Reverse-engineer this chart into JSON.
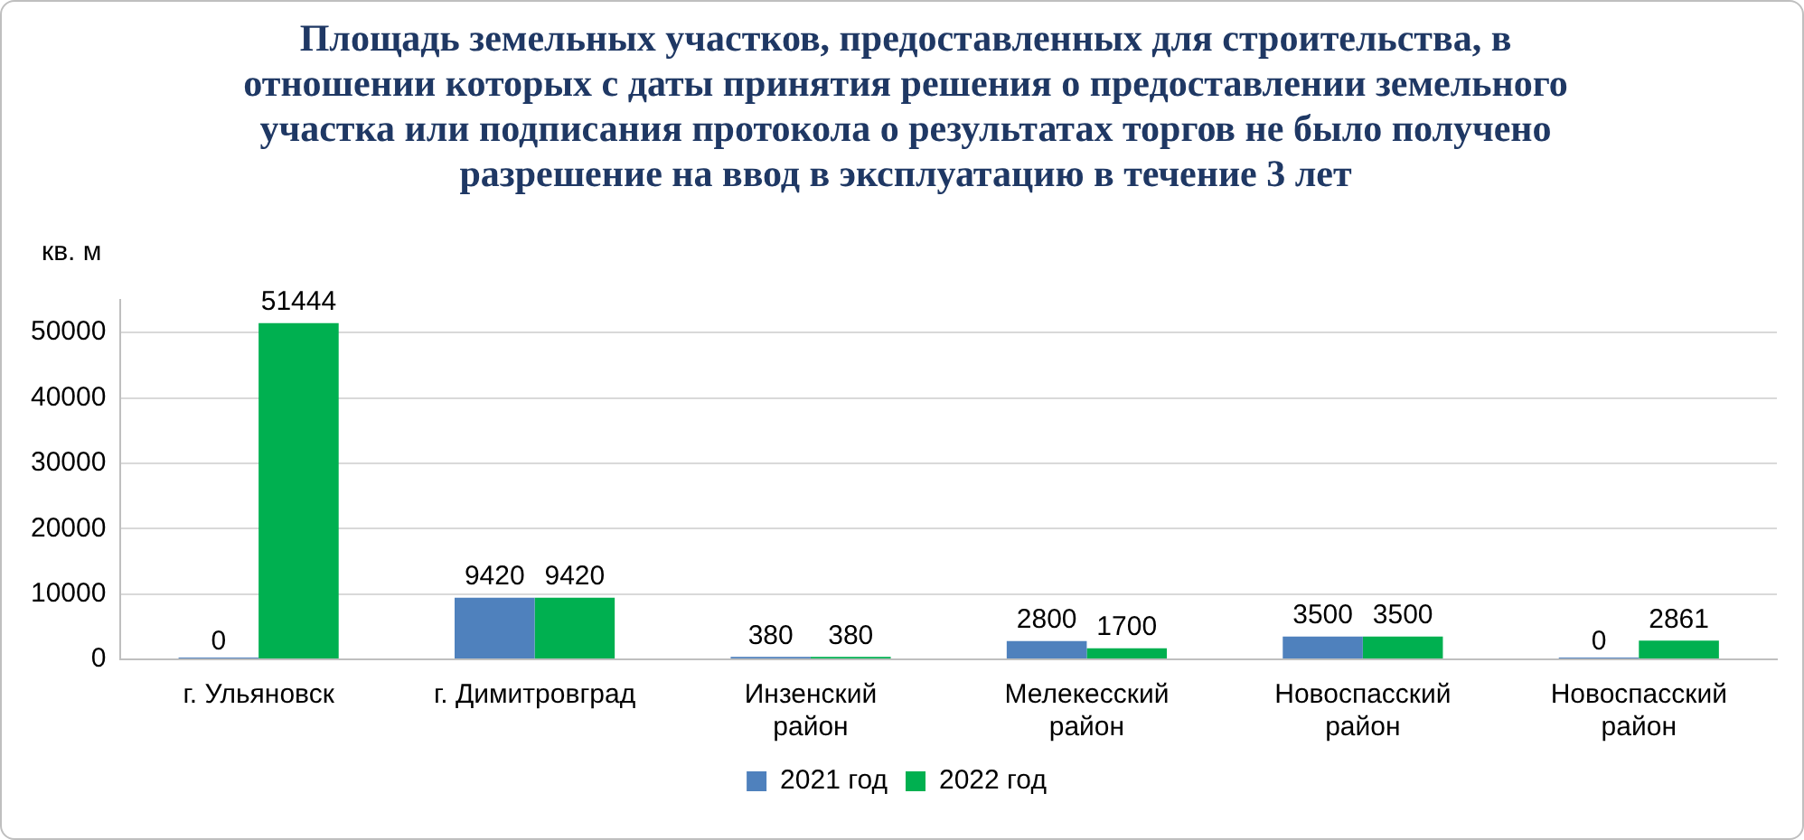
{
  "chart_data": {
    "type": "bar",
    "title": "Площадь земельных участков, предоставленных для строительства, в отношении которых с даты принятия решения о предоставлении земельного участка или подписания протокола о результатах торгов не было получено разрешение на ввод в эксплуатацию в течение 3 лет",
    "ylabel": "кв. м",
    "categories": [
      "г. Ульяновск",
      "г. Димитровград",
      "Инзенский район",
      "Мелекесский район",
      "Новоспасский район",
      "Новоспасский район"
    ],
    "series": [
      {
        "name": "2021 год",
        "color": "#4f81bd",
        "values": [
          0,
          9420,
          380,
          2800,
          3500,
          0
        ]
      },
      {
        "name": "2022 год",
        "color": "#00b050",
        "values": [
          51444,
          9420,
          380,
          1700,
          3500,
          2861
        ]
      }
    ],
    "ylim": [
      0,
      55000
    ],
    "yticks": [
      0,
      10000,
      20000,
      30000,
      40000,
      50000
    ],
    "grid": "y",
    "legend": "bottom",
    "data_labels": true
  }
}
